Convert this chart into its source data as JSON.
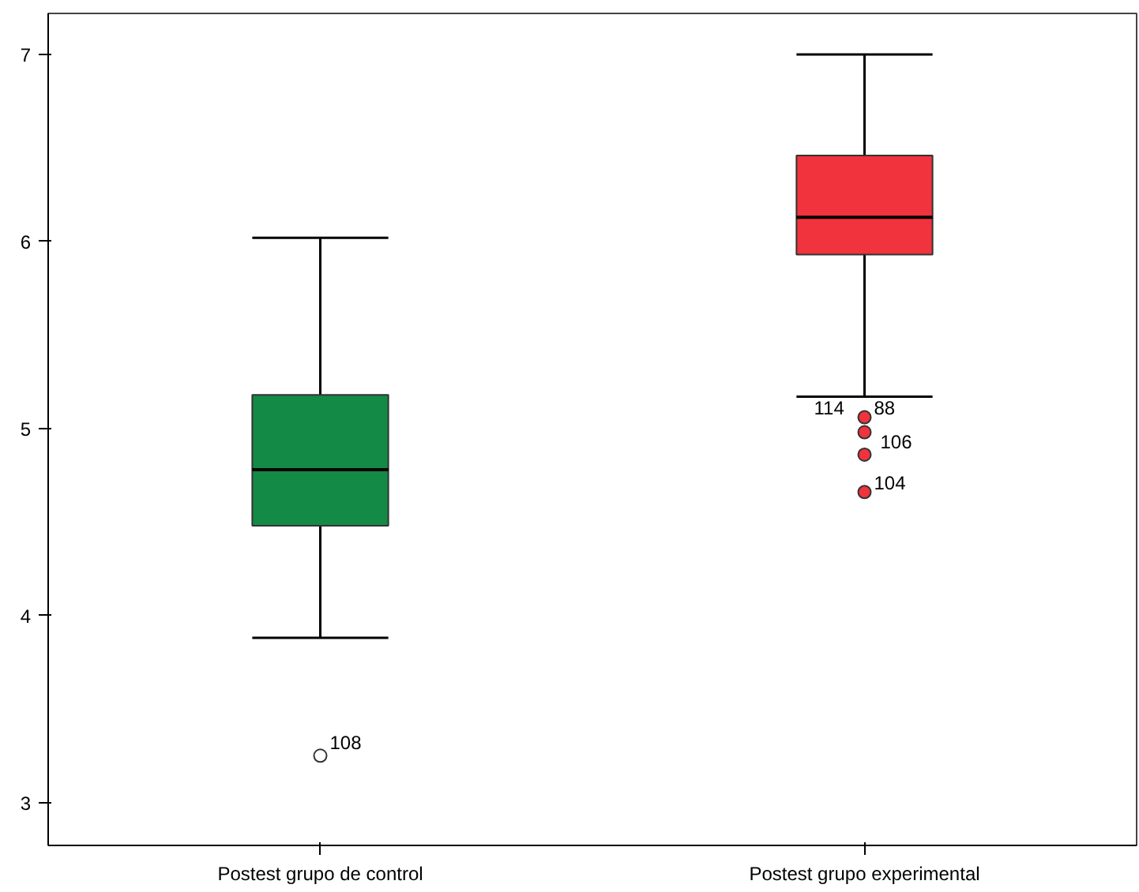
{
  "chart_data": {
    "type": "box",
    "categories": [
      "Postest grupo de control",
      "Postest grupo experimental"
    ],
    "colors": [
      "#138a45",
      "#f0333d"
    ],
    "boxes": [
      {
        "low": 3.88,
        "q1": 4.48,
        "median": 4.78,
        "q3": 5.18,
        "high": 6.02
      },
      {
        "low": 5.17,
        "q1": 5.93,
        "median": 6.13,
        "q3": 6.46,
        "high": 7.0
      }
    ],
    "series": [
      {
        "type": "scatter",
        "x": [
          "Postest grupo de control",
          "Postest grupo experimental",
          "Postest grupo experimental",
          "Postest grupo experimental",
          "Postest grupo experimental"
        ],
        "values": [
          3.25,
          5.06,
          4.98,
          4.86,
          4.66
        ],
        "colors": [
          "#ffffff",
          "#f0333d",
          "#f0333d",
          "#f0333d",
          "#f0333d"
        ]
      }
    ],
    "ylim": [
      2.77,
      7.22
    ],
    "yticks": [
      3,
      4,
      5,
      6,
      7
    ],
    "grid": false,
    "annotations": [
      {
        "text": "108",
        "x": "Postest grupo de control",
        "y": 3.25
      },
      {
        "text": "88",
        "x": "Postest grupo experimental",
        "y": 5.06
      },
      {
        "text": "114",
        "x": "Postest grupo experimental",
        "y": 5.06
      },
      {
        "text": "106",
        "x": "Postest grupo experimental",
        "y": 4.98
      },
      {
        "text": "104",
        "x": "Postest grupo experimental",
        "y": 4.86
      }
    ]
  }
}
